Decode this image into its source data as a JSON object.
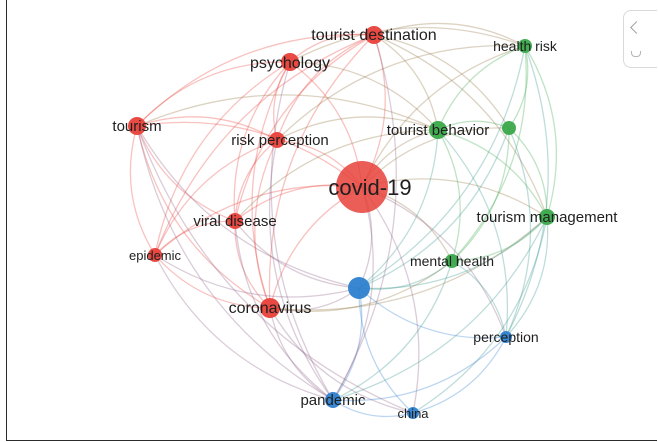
{
  "network": {
    "clusters": {
      "red": "#e8413a",
      "green": "#3aa84a",
      "blue": "#2e7fcf"
    },
    "nodes": [
      {
        "id": "covid-19",
        "label": "covid-19",
        "cluster": "red"
      },
      {
        "id": "tourist-destination",
        "label": "tourist destination",
        "cluster": "red"
      },
      {
        "id": "psychology",
        "label": "psychology",
        "cluster": "red"
      },
      {
        "id": "tourism",
        "label": "tourism",
        "cluster": "red"
      },
      {
        "id": "risk-perception",
        "label": "risk perception",
        "cluster": "red"
      },
      {
        "id": "viral-disease",
        "label": "viral disease",
        "cluster": "red"
      },
      {
        "id": "epidemic",
        "label": "epidemic",
        "cluster": "red"
      },
      {
        "id": "coronavirus",
        "label": "coronavirus",
        "cluster": "red"
      },
      {
        "id": "health-risk",
        "label": "health risk",
        "cluster": "green"
      },
      {
        "id": "tourist-behavior",
        "label": "tourist behavior",
        "cluster": "green"
      },
      {
        "id": "tourist-behavior-2",
        "label": "",
        "cluster": "green"
      },
      {
        "id": "tourism-management",
        "label": "tourism management",
        "cluster": "green"
      },
      {
        "id": "mental-health",
        "label": "mental health",
        "cluster": "green"
      },
      {
        "id": "blue-hub",
        "label": "",
        "cluster": "blue"
      },
      {
        "id": "perception",
        "label": "perception",
        "cluster": "blue"
      },
      {
        "id": "pandemic",
        "label": "pandemic",
        "cluster": "blue"
      },
      {
        "id": "china",
        "label": "china",
        "cluster": "blue"
      }
    ]
  },
  "side_panel": {
    "collapse_icon": "chevron-left-icon",
    "magnet_icon": "magnet-icon"
  }
}
